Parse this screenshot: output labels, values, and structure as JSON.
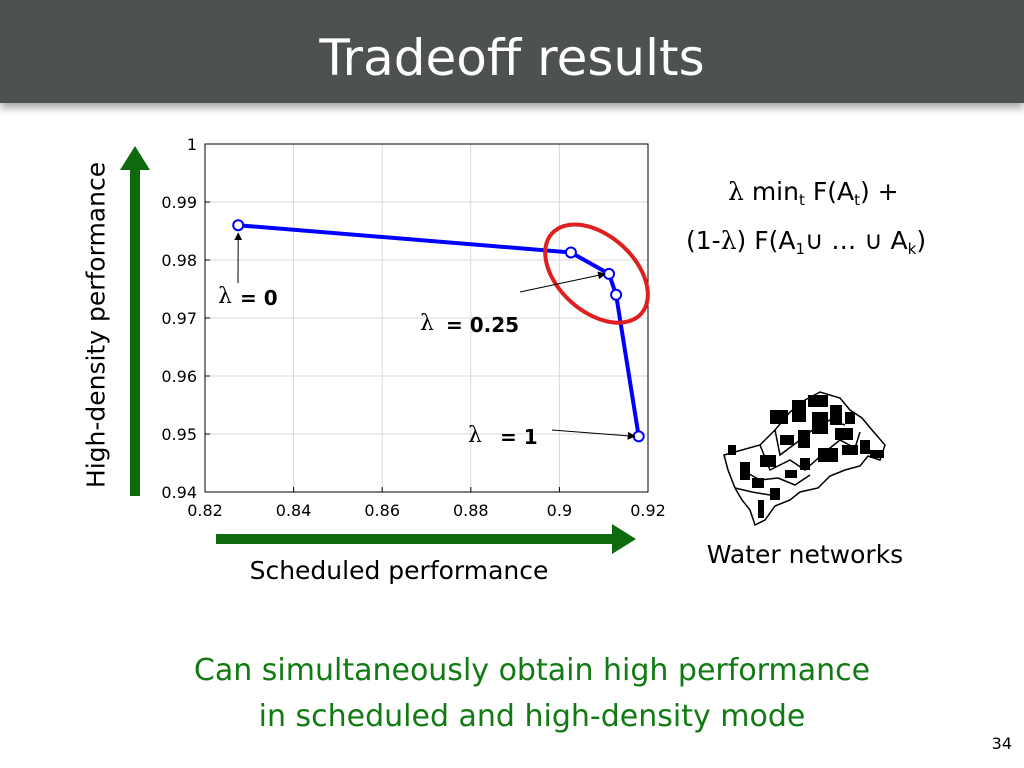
{
  "slide": {
    "title": "Tradeoff results",
    "page_number": "34",
    "formula_line1": {
      "lambda": "λ",
      "min": "min",
      "min_sub": "t",
      "f": "F(A",
      "f_sub": "t",
      "tail": ") +"
    },
    "formula_line2": {
      "head": "(1-",
      "lambda": "λ",
      "mid": ") F(A",
      "sub1": "1",
      "union1": "∪",
      "dots": "…",
      "union2": "∪",
      "a": "A",
      "subk": "k",
      "close": ")"
    },
    "water_caption": "Water networks",
    "conclusion_line1": "Can simultaneously obtain high performance",
    "conclusion_line2": "in scheduled and high-density mode",
    "colors": {
      "title_bar": "#4d524f",
      "arrow_green": "#0d6b0d",
      "conclusion_green": "#127a12",
      "series_blue": "#0000ff",
      "highlight_red": "#e01f1f"
    }
  },
  "chart_data": {
    "type": "line",
    "xlabel": "Scheduled performance",
    "ylabel": "High-density performance",
    "xlim": [
      0.82,
      0.92
    ],
    "ylim": [
      0.94,
      1.0
    ],
    "xticks": [
      "0.82",
      "0.84",
      "0.86",
      "0.88",
      "0.9",
      "0.92"
    ],
    "yticks": [
      "0.94",
      "0.95",
      "0.96",
      "0.97",
      "0.98",
      "0.99",
      "1"
    ],
    "grid": true,
    "series": [
      {
        "x": [
          0.8275,
          0.9026,
          0.9112,
          0.9128,
          0.9179
        ],
        "y": [
          0.986,
          0.9813,
          0.9776,
          0.974,
          0.9496
        ],
        "marker": "o"
      }
    ],
    "annotations": [
      {
        "lambda": "λ",
        "text": "= 0",
        "x": 0.8275,
        "y": 0.986
      },
      {
        "lambda": "λ",
        "text": "= 0.25",
        "x": 0.9112,
        "y": 0.9776
      },
      {
        "lambda": "λ",
        "text": "= 1",
        "x": 0.9179,
        "y": 0.9496
      }
    ]
  }
}
